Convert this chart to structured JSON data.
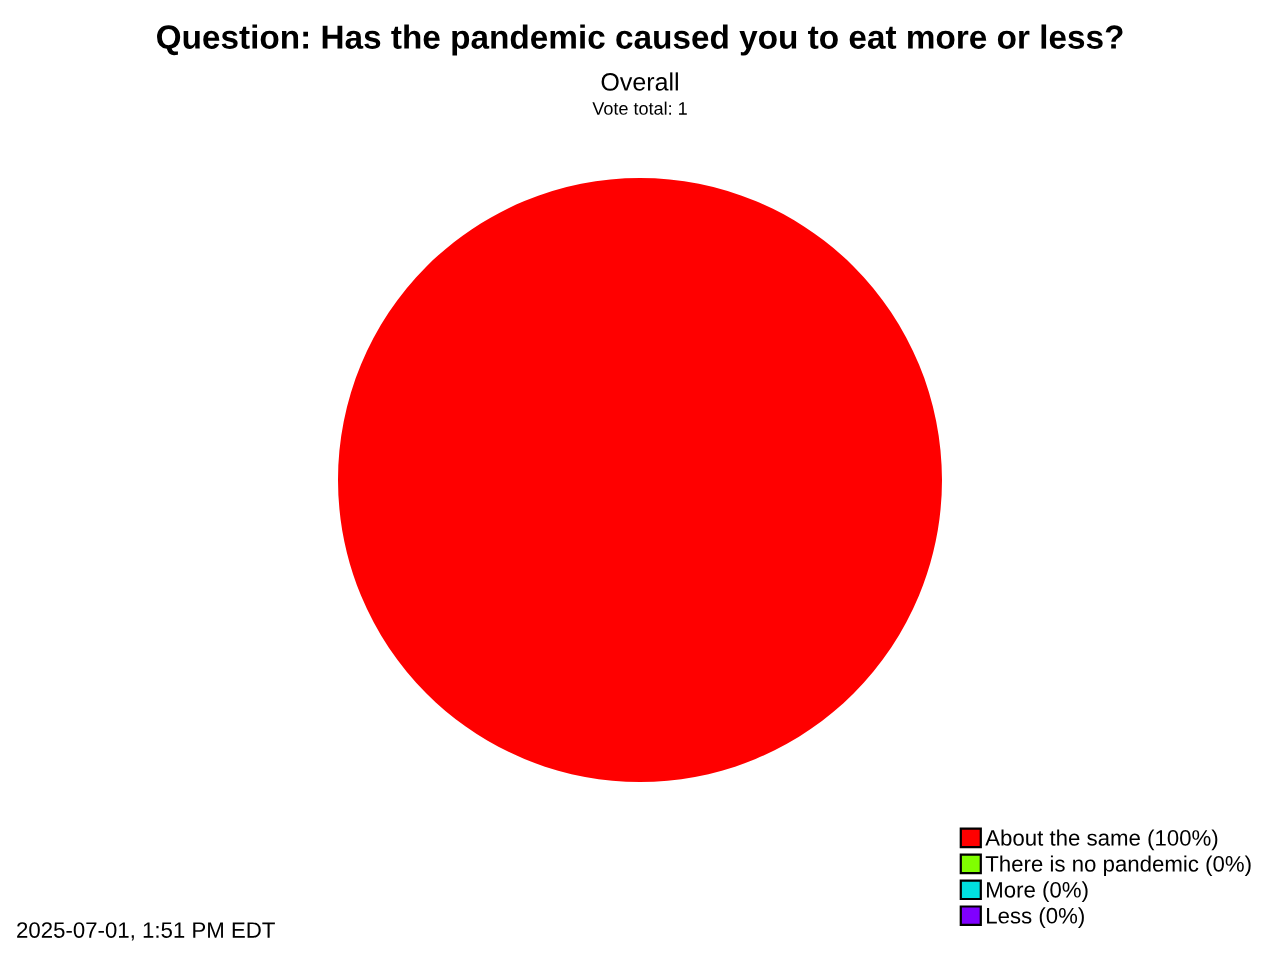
{
  "chart_data": {
    "type": "pie",
    "title": "Question: Has the pandemic caused you to eat more or less?",
    "subtitle": "Overall",
    "annotations": [
      "Vote total: 1",
      "2025-07-01, 1:51 PM EDT"
    ],
    "categories": [
      "About the same (100%)",
      "There is no pandemic (0%)",
      "More (0%)",
      "Less (0%)"
    ],
    "values": [
      100,
      0,
      0,
      0
    ],
    "colors": [
      "#ff0000",
      "#80ff00",
      "#00e0e0",
      "#8000ff"
    ],
    "legend": "bottom right"
  }
}
